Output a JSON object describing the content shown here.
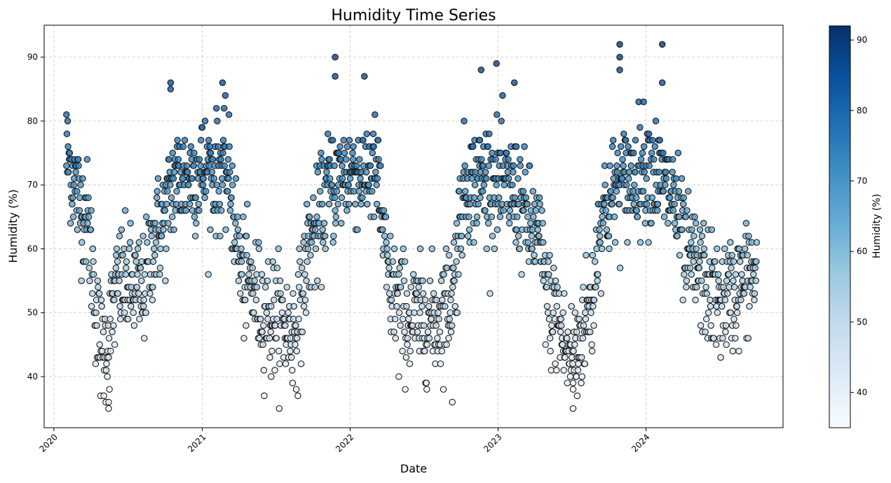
{
  "chart_data": {
    "type": "scatter",
    "title": "Humidity Time Series",
    "xlabel": "Date",
    "ylabel": "Humidity (%)",
    "xlim": [
      "2019-12-08",
      "2024-12-04"
    ],
    "ylim": [
      32,
      95
    ],
    "x_ticks": [
      "2020",
      "2021",
      "2022",
      "2023",
      "2024"
    ],
    "x_tick_dates": [
      "2020-01-01",
      "2021-01-01",
      "2022-01-01",
      "2023-01-01",
      "2024-01-01"
    ],
    "y_ticks": [
      40,
      50,
      60,
      70,
      80,
      90
    ],
    "grid": true,
    "colormap": "Blues",
    "colorbar": {
      "label": "Humidity (%)",
      "range": [
        35,
        92
      ],
      "ticks": [
        40,
        50,
        60,
        70,
        80,
        90
      ]
    },
    "series": [
      {
        "x_start": "2020-02-01",
        "x_end": "2024-09-30",
        "sampling": "daily",
        "anchors": [
          [
            "2020-02-01",
            74
          ],
          [
            "2020-03-15",
            66
          ],
          [
            "2020-05-01",
            44
          ],
          [
            "2020-06-15",
            55
          ],
          [
            "2020-08-01",
            53
          ],
          [
            "2020-09-15",
            63
          ],
          [
            "2020-11-01",
            71
          ],
          [
            "2021-01-01",
            72
          ],
          [
            "2021-03-01",
            72
          ],
          [
            "2021-04-15",
            55
          ],
          [
            "2021-06-15",
            50
          ],
          [
            "2021-08-15",
            47
          ],
          [
            "2021-10-01",
            62
          ],
          [
            "2021-11-15",
            70
          ],
          [
            "2022-01-01",
            72
          ],
          [
            "2022-03-01",
            72
          ],
          [
            "2022-04-15",
            53
          ],
          [
            "2022-06-01",
            49
          ],
          [
            "2022-08-01",
            49
          ],
          [
            "2022-09-01",
            52
          ],
          [
            "2022-10-15",
            70
          ],
          [
            "2022-12-01",
            71
          ],
          [
            "2023-02-01",
            69
          ],
          [
            "2023-04-01",
            63
          ],
          [
            "2023-05-15",
            50
          ],
          [
            "2023-07-01",
            43
          ],
          [
            "2023-08-15",
            50
          ],
          [
            "2023-09-15",
            66
          ],
          [
            "2023-11-01",
            70
          ],
          [
            "2024-01-01",
            73
          ],
          [
            "2024-03-01",
            69
          ],
          [
            "2024-04-15",
            58
          ],
          [
            "2024-07-01",
            52
          ],
          [
            "2024-09-30",
            56
          ]
        ],
        "noise": 4.5,
        "outliers": [
          [
            "2020-02-01",
            81
          ],
          [
            "2020-10-15",
            86
          ],
          [
            "2020-10-15",
            85
          ],
          [
            "2021-02-20",
            86
          ],
          [
            "2021-11-25",
            90
          ],
          [
            "2021-11-25",
            87
          ],
          [
            "2022-11-20",
            88
          ],
          [
            "2022-12-28",
            89
          ],
          [
            "2023-02-10",
            86
          ],
          [
            "2023-10-28",
            92
          ],
          [
            "2023-10-28",
            90
          ],
          [
            "2023-10-28",
            88
          ],
          [
            "2024-02-10",
            92
          ],
          [
            "2024-02-10",
            86
          ],
          [
            "2020-05-15",
            35
          ],
          [
            "2020-05-15",
            36
          ],
          [
            "2022-09-10",
            36
          ],
          [
            "2023-07-05",
            35
          ],
          [
            "2023-07-05",
            38
          ],
          [
            "2023-07-15",
            37
          ],
          [
            "2021-06-20",
            40
          ],
          [
            "2022-05-01",
            40
          ]
        ]
      }
    ]
  }
}
